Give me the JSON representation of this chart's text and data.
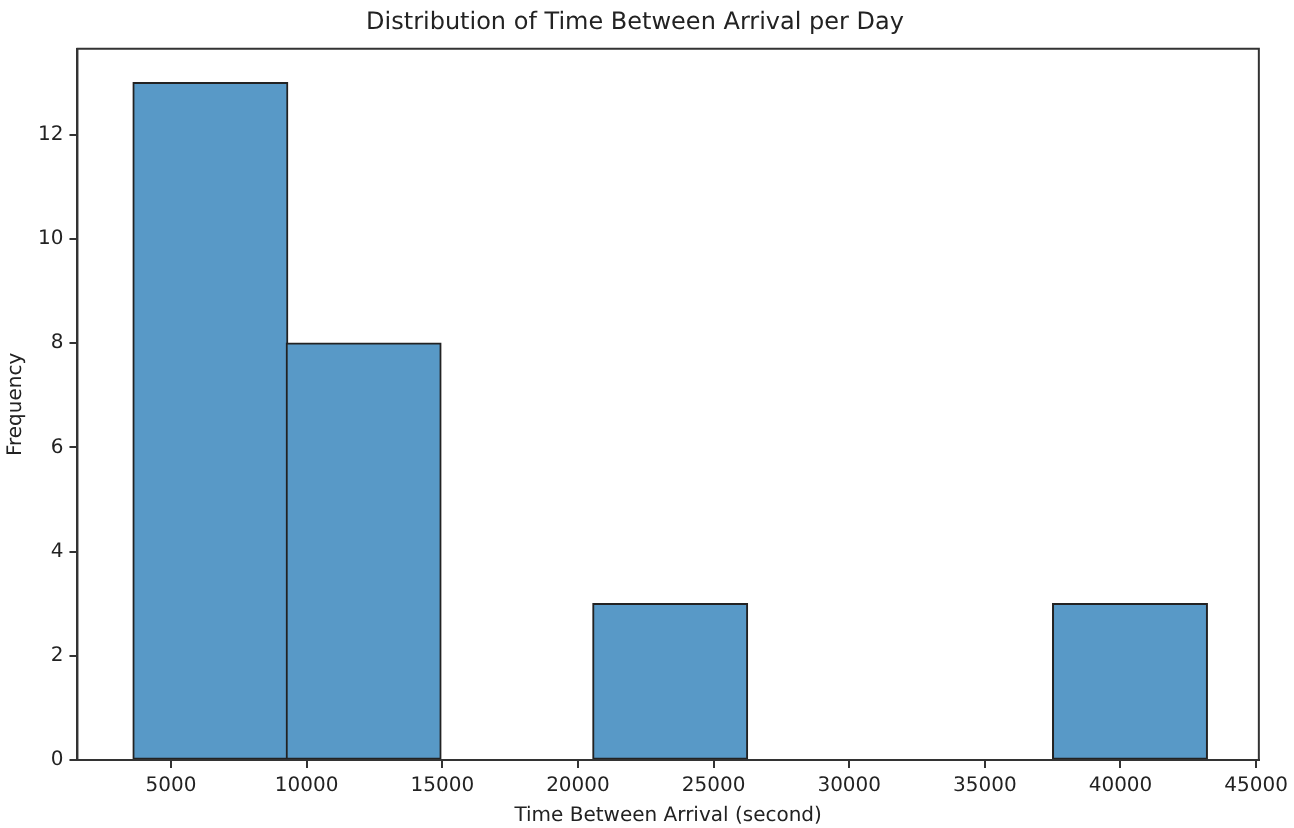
{
  "chart_data": {
    "type": "histogram",
    "title": "Distribution of Time Between Arrival per Day",
    "xlabel": "Time Between Arrival (second)",
    "ylabel": "Frequency",
    "bins": [
      3600,
      9300,
      14900,
      20600,
      26200,
      31900,
      37500,
      43200
    ],
    "values": [
      13,
      8,
      0,
      3,
      0,
      0,
      3
    ],
    "color": "#5899c7",
    "xlim": [
      1550,
      45100
    ],
    "xticks": [
      5000,
      10000,
      15000,
      20000,
      25000,
      30000,
      35000,
      40000,
      45000
    ],
    "ylim": [
      0,
      13.65
    ],
    "yticks": [
      0,
      2,
      4,
      6,
      8,
      10,
      12
    ],
    "grid": false,
    "legend": false
  }
}
